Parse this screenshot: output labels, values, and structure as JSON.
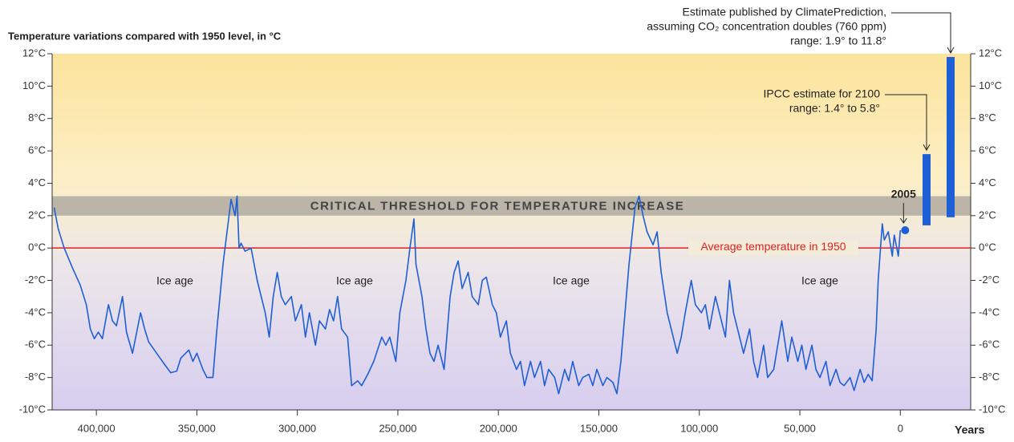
{
  "chart_data": {
    "type": "line",
    "title": "Temperature variations compared with 1950 level, in °C",
    "x_label": "Years",
    "xlim": [
      422000,
      -35000
    ],
    "ylim": [
      -10,
      12
    ],
    "xticks": [
      {
        "value": 400000,
        "label": "400,000"
      },
      {
        "value": 350000,
        "label": "350,000"
      },
      {
        "value": 300000,
        "label": "300,000"
      },
      {
        "value": 250000,
        "label": "250,000"
      },
      {
        "value": 200000,
        "label": "200,000"
      },
      {
        "value": 150000,
        "label": "150,000"
      },
      {
        "value": 100000,
        "label": "100,000"
      },
      {
        "value": 50000,
        "label": "50,000"
      },
      0
    ],
    "yticks": [
      {
        "value": -10,
        "label": "-10°C"
      },
      {
        "value": -8,
        "label": "-8°C"
      },
      {
        "value": -6,
        "label": "-6°C"
      },
      {
        "value": -4,
        "label": "-4°C"
      },
      {
        "value": -2,
        "label": "-2°C"
      },
      {
        "value": 0,
        "label": "0°C"
      },
      {
        "value": 2,
        "label": "2°C"
      },
      {
        "value": 4,
        "label": "4°C"
      },
      {
        "value": 6,
        "label": "6°C"
      },
      {
        "value": 8,
        "label": "8°C"
      },
      {
        "value": 10,
        "label": "10°C"
      },
      {
        "value": 12,
        "label": "12°C"
      }
    ],
    "series": [
      {
        "color": "#1f5fd6",
        "x": [
          421000,
          419000,
          416000,
          412000,
          408000,
          405000,
          403000,
          401000,
          399000,
          397000,
          394000,
          392000,
          390000,
          387000,
          385000,
          382000,
          378000,
          376000,
          374000,
          370000,
          366000,
          363000,
          360000,
          358000,
          354000,
          352000,
          350000,
          347000,
          345000,
          342000,
          340000,
          337000,
          334000,
          333000,
          331000,
          330000,
          329000,
          328000,
          326000,
          323000,
          320000,
          316000,
          314000,
          312000,
          310000,
          308000,
          306000,
          303000,
          301000,
          298000,
          296000,
          294000,
          291000,
          289000,
          286000,
          284000,
          282000,
          280000,
          278000,
          275000,
          273000,
          270000,
          268000,
          265000,
          262000,
          258000,
          256000,
          254000,
          251000,
          249000,
          246000,
          244000,
          242000,
          241000,
          238000,
          236000,
          234000,
          232000,
          230000,
          227000,
          226000,
          224000,
          222000,
          220000,
          218000,
          215000,
          213000,
          210000,
          208000,
          206000,
          203000,
          201000,
          199000,
          196000,
          194000,
          191000,
          189000,
          187000,
          184000,
          182000,
          179000,
          177000,
          175000,
          172000,
          170000,
          167000,
          165000,
          163000,
          160000,
          158000,
          155000,
          153000,
          151000,
          148000,
          146000,
          143000,
          141000,
          139000,
          137000,
          135000,
          132000,
          130000,
          128000,
          126000,
          123000,
          121000,
          119000,
          116000,
          114000,
          111000,
          109000,
          107000,
          104000,
          102000,
          99000,
          97000,
          95000,
          92000,
          90000,
          87000,
          85000,
          83000,
          80000,
          78000,
          75000,
          73000,
          71000,
          68000,
          66000,
          63000,
          61000,
          59000,
          56000,
          54000,
          51000,
          49000,
          47000,
          44000,
          42000,
          40000,
          37000,
          35000,
          32000,
          30000,
          28000,
          25000,
          23000,
          20000,
          18000,
          16000,
          14000,
          12000,
          11000,
          9000,
          8000,
          6000,
          4000,
          3000,
          1000,
          0
        ],
        "values": [
          2.5,
          1.2,
          0,
          -1.2,
          -2.3,
          -3.5,
          -5,
          -5.6,
          -5.2,
          -5.6,
          -3.5,
          -4.5,
          -4.8,
          -3,
          -5.2,
          -6.5,
          -4,
          -5,
          -5.8,
          -6.5,
          -7.2,
          -7.7,
          -7.6,
          -6.8,
          -6.3,
          -7,
          -6.5,
          -7.5,
          -8,
          -8,
          -5,
          -1,
          2,
          3,
          2,
          3.2,
          0,
          0.3,
          -0.2,
          0,
          -2,
          -4,
          -5.5,
          -3,
          -1.5,
          -3,
          -3.5,
          -3,
          -4.5,
          -3.5,
          -5.5,
          -4,
          -6,
          -4.5,
          -5,
          -3.8,
          -4.5,
          -3,
          -5,
          -5.5,
          -8.5,
          -8.2,
          -8.5,
          -7.8,
          -7,
          -5.5,
          -6,
          -5.5,
          -7,
          -4,
          -2,
          0,
          1.8,
          -1,
          -3,
          -5,
          -6.5,
          -7,
          -6,
          -7.5,
          -6,
          -3,
          -1.5,
          -0.8,
          -2.5,
          -1.5,
          -3,
          -3.5,
          -2,
          -1.8,
          -3.5,
          -4,
          -5.5,
          -4.5,
          -6.5,
          -7.5,
          -7,
          -8.5,
          -7,
          -8,
          -7,
          -8.5,
          -7.5,
          -8,
          -9,
          -7.5,
          -8.2,
          -7,
          -8.5,
          -8,
          -7.8,
          -8.5,
          -7.5,
          -8.5,
          -8,
          -8.3,
          -9,
          -7,
          -4,
          -1,
          2.5,
          3.2,
          2,
          1,
          0.2,
          1,
          -1.5,
          -4,
          -5,
          -6.5,
          -5.5,
          -4,
          -2,
          -3.5,
          -4,
          -3.5,
          -5,
          -3,
          -4,
          -5.5,
          -2,
          -4,
          -5.5,
          -6.5,
          -5,
          -7,
          -8,
          -6,
          -8,
          -7.5,
          -6,
          -4.5,
          -7,
          -5.5,
          -7,
          -6,
          -7.5,
          -6,
          -7.5,
          -8,
          -7,
          -8.5,
          -7.5,
          -8.3,
          -8.5,
          -8,
          -8.8,
          -7.5,
          -8.3,
          -7.8,
          -8.2,
          -5,
          -2,
          1.5,
          0.5,
          1,
          -0.5,
          0.8,
          -0.5,
          1.1
        ]
      }
    ],
    "threshold": {
      "label": "CRITICAL THRESHOLD FOR TEMPERATURE INCREASE",
      "range": [
        2,
        3.2
      ]
    },
    "baseline": {
      "label": "Average temperature in 1950",
      "value": 0
    },
    "point_label": "2005",
    "annotations": [
      "Ice age",
      "Ice age",
      "Ice age",
      "Ice age"
    ],
    "estimates": [
      {
        "lines": [
          "IPCC estimate for 2100",
          "range: 1.4° to 5.8°"
        ],
        "low": 1.4,
        "high": 5.8,
        "color": "#1f5fd6"
      },
      {
        "lines": [
          "Estimate published by ClimatePrediction,",
          "assuming CO₂ concentration doubles (760 ppm)",
          "range: 1.9° to 11.8°"
        ],
        "low": 1.9,
        "high": 11.8,
        "color": "#1f5fd6"
      }
    ]
  }
}
